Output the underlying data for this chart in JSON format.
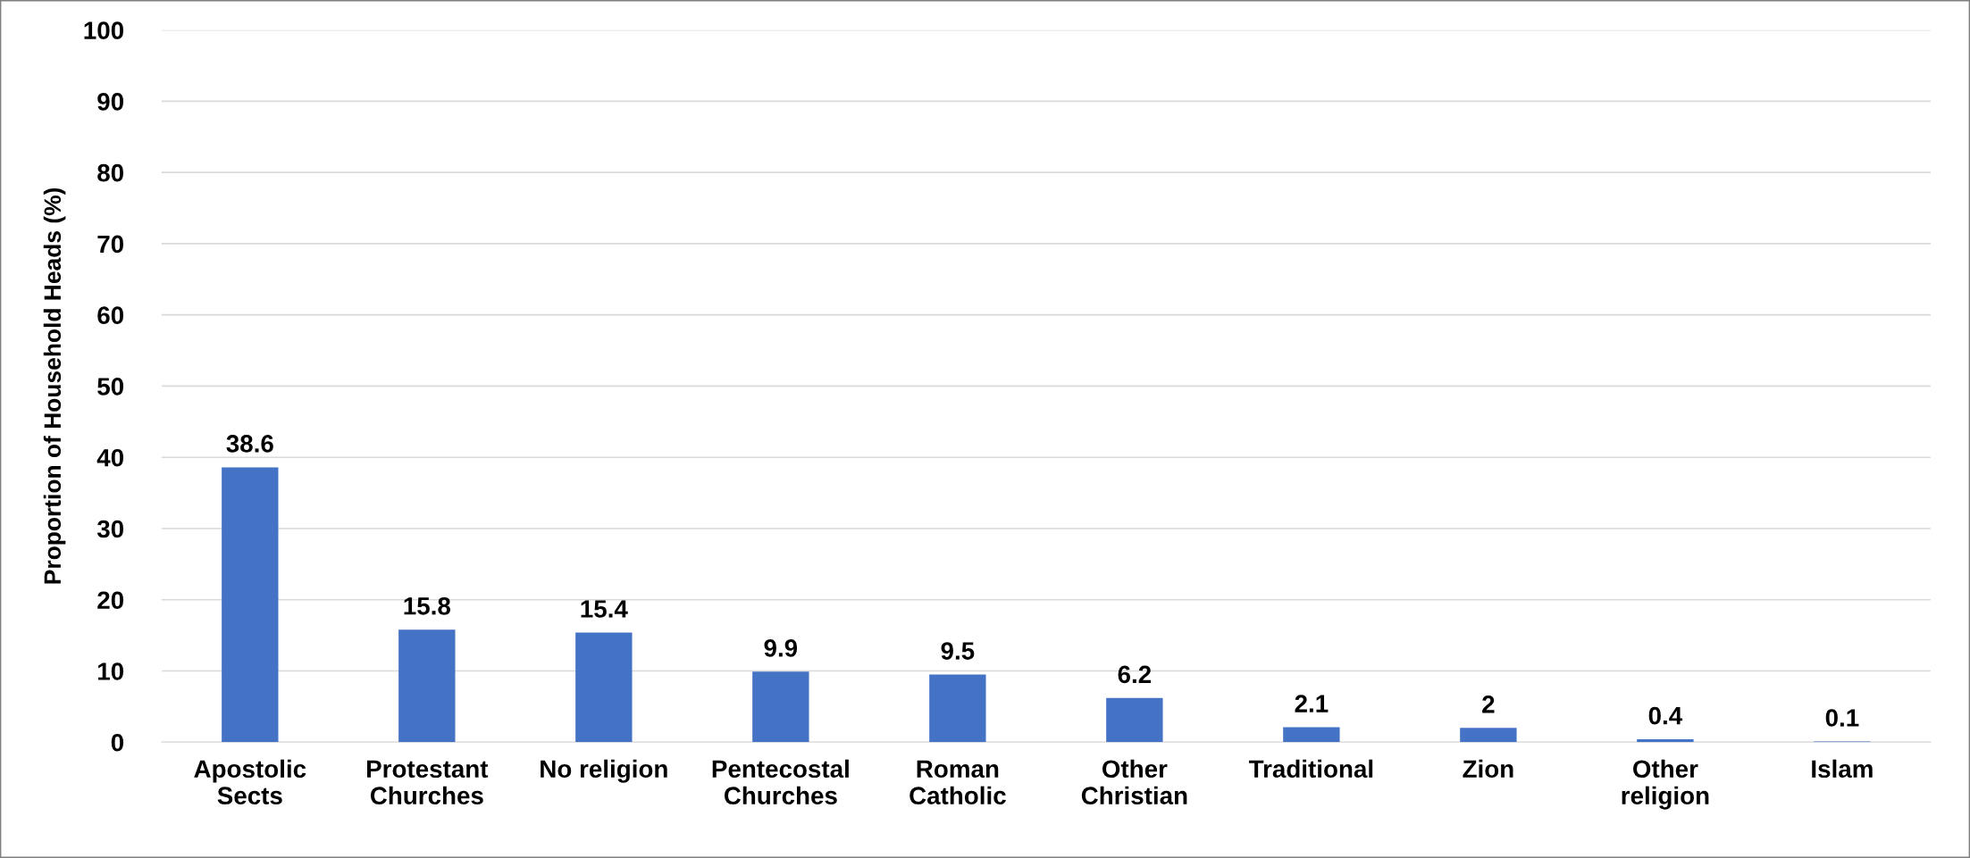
{
  "chart_data": {
    "type": "bar",
    "categories": [
      "Apostolic\nSects",
      "Protestant\nChurches",
      "No religion",
      "Pentecostal\nChurches",
      "Roman\nCatholic",
      "Other\nChristian",
      "Traditional",
      "Zion",
      "Other\nreligion",
      "Islam"
    ],
    "values": [
      38.6,
      15.8,
      15.4,
      9.9,
      9.5,
      6.2,
      2.1,
      2,
      0.4,
      0.1
    ],
    "color": "#4472c4",
    "ylabel": "Proportion of Household Heads (%)",
    "ylim": [
      0,
      100
    ],
    "yticks": [
      0,
      10,
      20,
      30,
      40,
      50,
      60,
      70,
      80,
      90,
      100
    ],
    "grid": "y",
    "data_labels": true
  }
}
